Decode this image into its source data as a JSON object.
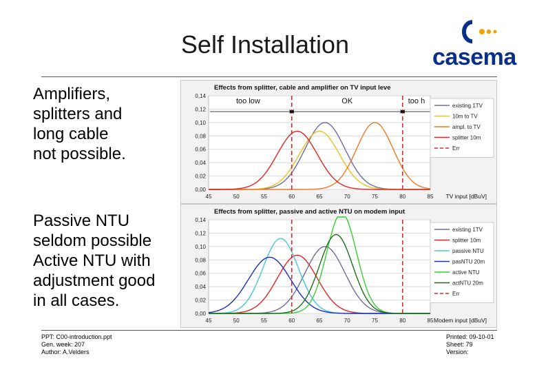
{
  "slide": {
    "title": "Self Installation",
    "logo_text": "casema",
    "bullet1": [
      "Amplifiers,",
      "splitters and",
      "long cable",
      "not possible."
    ],
    "bullet2": [
      "Passive NTU",
      "seldom possible",
      "Active NTU with",
      "adjustment good",
      "in all cases."
    ]
  },
  "footer": {
    "left": [
      "PPT: C00-introduction.ppt",
      "Gen. week: 207",
      "Author: A.Velders"
    ],
    "right": [
      "Printed: 09-10-01",
      "Sheet: 79",
      "Version:"
    ]
  },
  "colors": {
    "logo_blue": "#0a2f8a",
    "logo_dots": "#f5a000"
  },
  "chart_data": [
    {
      "type": "line",
      "title": "Effects from splitter, cable and amplifier on TV input leve",
      "xlabel": "TV input [dBuV]",
      "ylabel": "",
      "x_ticks": [
        45,
        50,
        55,
        60,
        65,
        70,
        75,
        80,
        85
      ],
      "y_ticks": [
        "0,00",
        "0,02",
        "0,04",
        "0,06",
        "0,08",
        "0,10",
        "0,12",
        "0,14"
      ],
      "xlim": [
        45,
        85
      ],
      "ylim": [
        0,
        0.14
      ],
      "grid": true,
      "legend_position": "right",
      "region_labels": [
        "too low",
        "OK",
        "too h"
      ],
      "markers": [
        60,
        80
      ],
      "series": [
        {
          "name": "existing 1TV",
          "color": "#6b6b9e",
          "peak_x": 66,
          "peak_y": 0.1,
          "width": 3.6
        },
        {
          "name": "10m to TV",
          "color": "#e6c21a",
          "peak_x": 65,
          "peak_y": 0.087,
          "width": 3.6
        },
        {
          "name": "ampl. to TV",
          "color": "#f07820",
          "peak_x": 75,
          "peak_y": 0.1,
          "width": 3.3
        },
        {
          "name": "splitter 10m",
          "color": "#e82020",
          "peak_x": 61,
          "peak_y": 0.087,
          "width": 3.6
        },
        {
          "name": "Err",
          "color": "#e82020",
          "dashed": true
        }
      ]
    },
    {
      "type": "line",
      "title": "Effects from splitter, passive and active NTU on modem input",
      "xlabel": "Modem input [dBuV]",
      "ylabel": "",
      "x_ticks": [
        45,
        50,
        55,
        60,
        65,
        70,
        75,
        80,
        85
      ],
      "y_ticks": [
        "0,00",
        "0,02",
        "0,04",
        "0,06",
        "0,08",
        "0,10",
        "0,12",
        "0,14"
      ],
      "xlim": [
        45,
        85
      ],
      "ylim": [
        0,
        0.14
      ],
      "grid": true,
      "legend_position": "right",
      "markers": [
        60,
        80
      ],
      "series": [
        {
          "name": "existing 1TV",
          "color": "#6b6b9e",
          "peak_x": 66,
          "peak_y": 0.1,
          "width": 3.6
        },
        {
          "name": "splitter 10m",
          "color": "#e82020",
          "peak_x": 61,
          "peak_y": 0.087,
          "width": 3.6
        },
        {
          "name": "passive NTU",
          "color": "#40c8d8",
          "peak_x": 58,
          "peak_y": 0.112,
          "width": 3.2
        },
        {
          "name": "pasNTU 20m",
          "color": "#1a2ec8",
          "peak_x": 56,
          "peak_y": 0.084,
          "width": 3.8
        },
        {
          "name": "active NTU",
          "color": "#30d030",
          "peak_x": 69,
          "peak_y": 0.15,
          "width": 2.7
        },
        {
          "name": "actNTU 20m",
          "color": "#1a6e1a",
          "peak_x": 68,
          "peak_y": 0.118,
          "width": 3.0
        },
        {
          "name": "Err",
          "color": "#e82020",
          "dashed": true
        }
      ]
    }
  ]
}
